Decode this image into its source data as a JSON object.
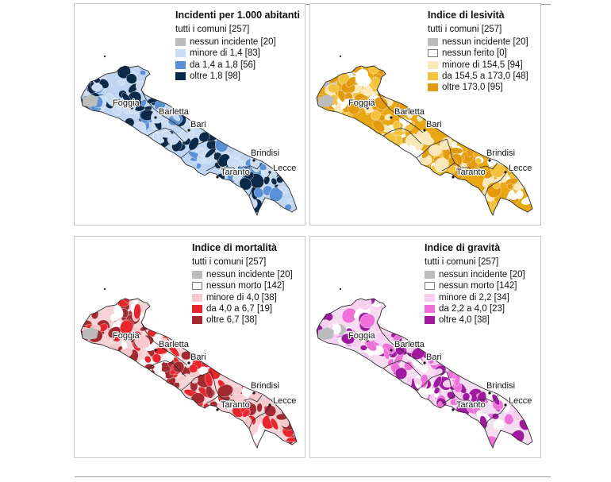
{
  "colors": {
    "grey": "#bcbcbc",
    "outline": "#2a2a2a"
  },
  "cities": [
    {
      "name": "Foggia"
    },
    {
      "name": "Barletta"
    },
    {
      "name": "Bari"
    },
    {
      "name": "Brindisi"
    },
    {
      "name": "Taranto"
    },
    {
      "name": "Lecce"
    }
  ],
  "panels": [
    {
      "title": "Incidenti per 1.000 abitanti",
      "subtitle": "tutti i comuni [257]",
      "base_color": "#bfd6f2",
      "legend": [
        {
          "label": "nessun incidente [20]",
          "color": "#bcbcbc"
        },
        {
          "label": "minore di 1,4 [83]",
          "color": "#c9dcf4"
        },
        {
          "label": "da 1,4 a 1,8 [56]",
          "color": "#5b8fd6"
        },
        {
          "label": "oltre 1,8 [98]",
          "color": "#0b2a4a"
        }
      ]
    },
    {
      "title": "Indice di lesività",
      "subtitle": "tutti i comuni [257]",
      "base_color": "#e8a713",
      "legend": [
        {
          "label": "nessun incidente [20]",
          "color": "#bcbcbc"
        },
        {
          "label": "nessun ferito [0]",
          "color": "#ffffff"
        },
        {
          "label": "minore di 154,5 [94]",
          "color": "#fbe8b8"
        },
        {
          "label": "da 154,5 a 173,0 [48]",
          "color": "#f2c23c"
        },
        {
          "label": "oltre 173,0 [95]",
          "color": "#e39a0d"
        }
      ]
    },
    {
      "title": "Indice di mortalità",
      "subtitle": "tutti i comuni [257]",
      "base_color": "#f6d3d6",
      "legend": [
        {
          "label": "nessun incidente [20]",
          "color": "#bcbcbc"
        },
        {
          "label": "nessun morto [142]",
          "color": "#ffffff"
        },
        {
          "label": "minore di 4,0 [38]",
          "color": "#f7c8cc"
        },
        {
          "label": "da 4,0 a 6,7 [19]",
          "color": "#e8242c"
        },
        {
          "label": "oltre 6,7 [38]",
          "color": "#a22a30"
        }
      ]
    },
    {
      "title": "Indice di gravità",
      "subtitle": "tutti i comuni [257]",
      "base_color": "#f5ddf1",
      "legend": [
        {
          "label": "nessun incidente [20]",
          "color": "#bcbcbc"
        },
        {
          "label": "nessun morto [142]",
          "color": "#ffffff"
        },
        {
          "label": "minore di 2,2 [34]",
          "color": "#f8cdf0"
        },
        {
          "label": "da 2,2 a 4,0 [23]",
          "color": "#ee70d8"
        },
        {
          "label": "oltre 4,0 [38]",
          "color": "#a01aa0"
        }
      ]
    }
  ]
}
